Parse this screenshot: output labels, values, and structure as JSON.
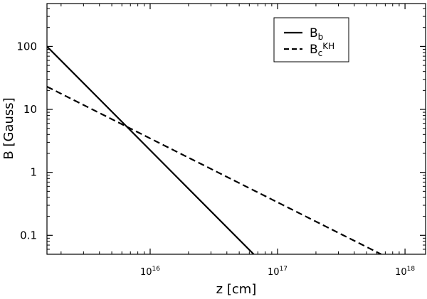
{
  "chart_data": {
    "type": "line",
    "xlabel": "z [cm]",
    "ylabel": "B [Gauss]",
    "xscale": "log",
    "yscale": "log",
    "xlim": [
      1550000000000000.0,
      1.45e+18
    ],
    "ylim": [
      0.05,
      480
    ],
    "xticks": [
      {
        "base": "10",
        "exp": "16",
        "value": 1e+16
      },
      {
        "base": "10",
        "exp": "17",
        "value": 1e+17
      },
      {
        "base": "10",
        "exp": "18",
        "value": 1e+18
      }
    ],
    "yticks": [
      {
        "label": "0.1",
        "value": 0.1
      },
      {
        "label": "1",
        "value": 1
      },
      {
        "label": "10",
        "value": 10
      },
      {
        "label": "100",
        "value": 100
      }
    ],
    "grid": false,
    "legend_position": "top-right",
    "series": [
      {
        "name": "B",
        "name_sub": "b",
        "name_sup": "",
        "style": "solid",
        "color": "#000000",
        "x": [
          1550000000000000.0,
          6.5e+16
        ],
        "y": [
          100,
          0.05
        ]
      },
      {
        "name": "B",
        "name_sub": "c",
        "name_sup": "KH",
        "style": "dashed",
        "color": "#000000",
        "x": [
          1550000000000000.0,
          6.5e+17
        ],
        "y": [
          23,
          0.05
        ]
      }
    ]
  }
}
